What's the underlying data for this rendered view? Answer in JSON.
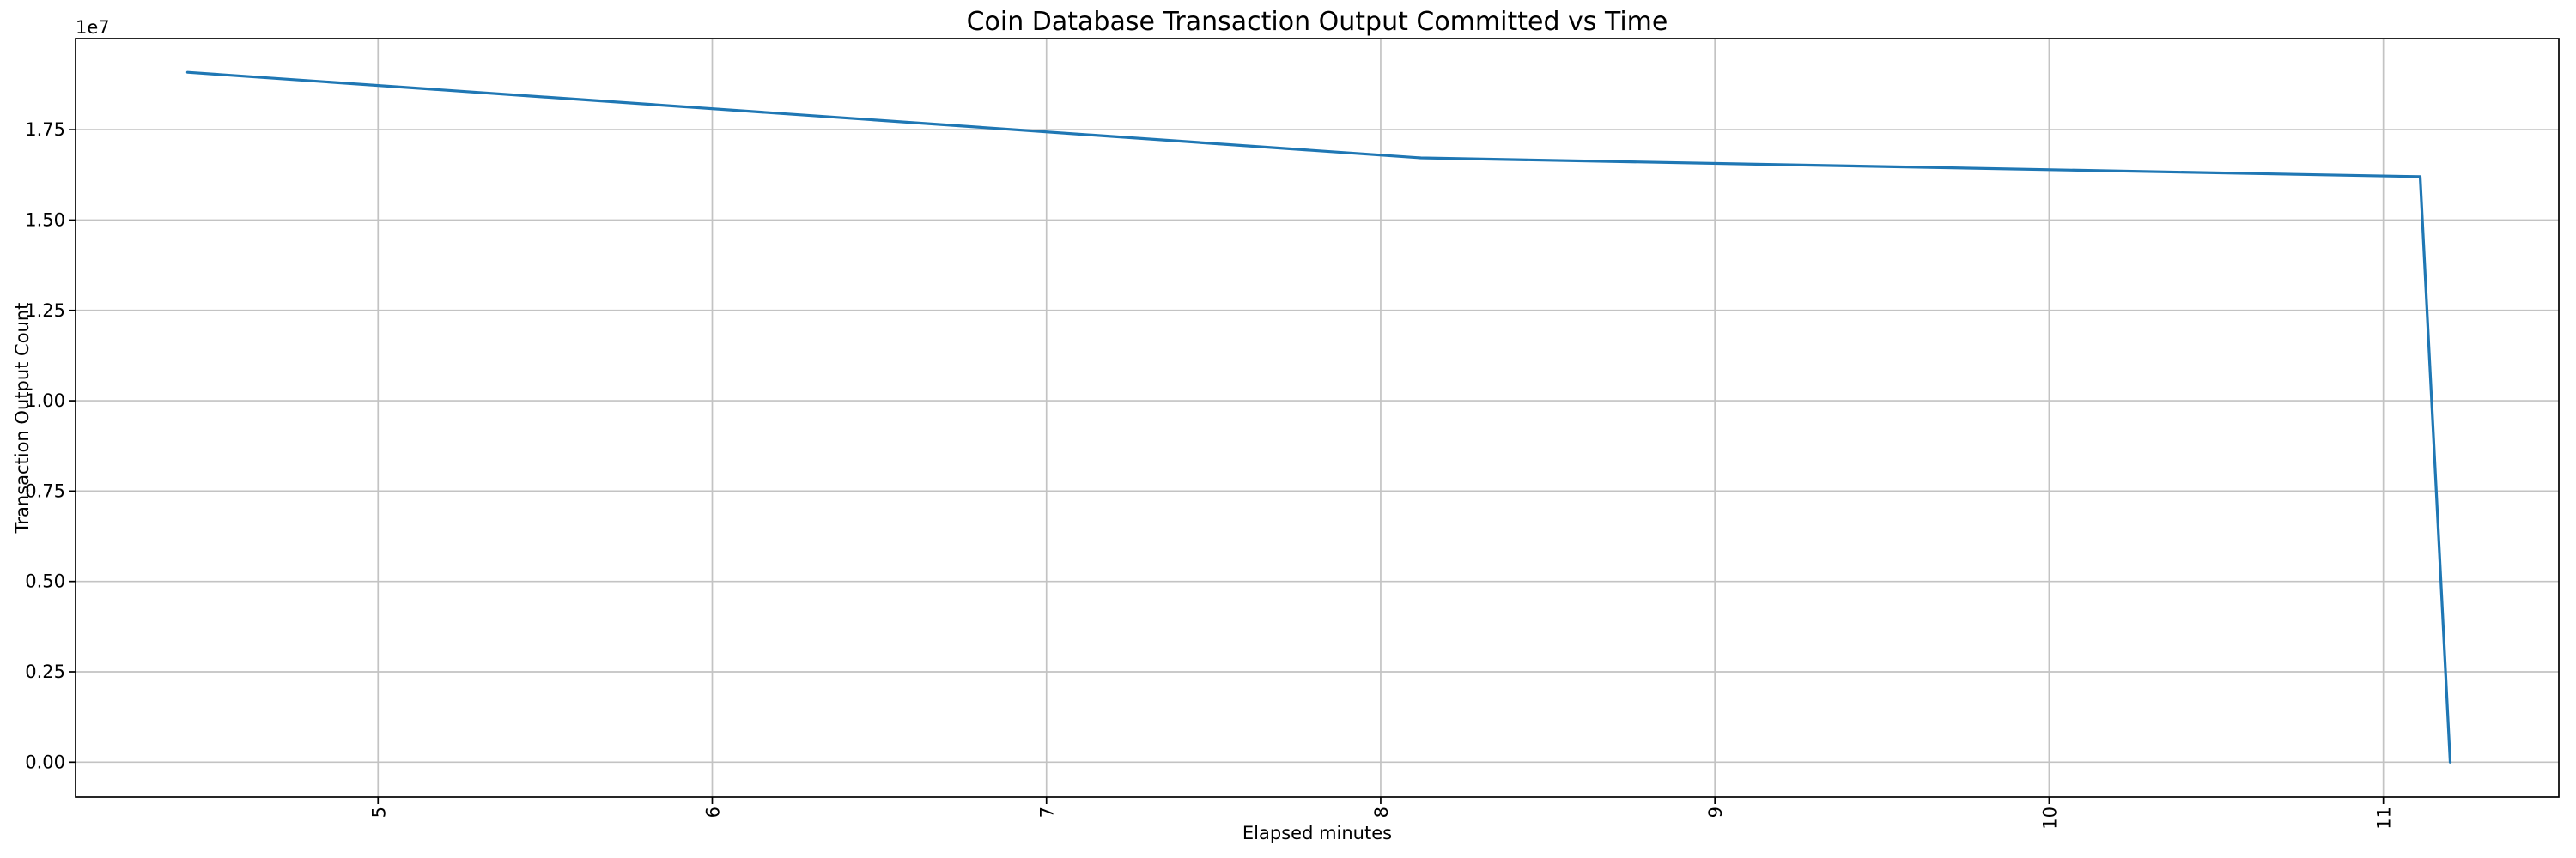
{
  "chart_data": {
    "type": "line",
    "title": "Coin Database Transaction Output Committed vs Time",
    "xlabel": "Elapsed minutes",
    "ylabel": "Transaction Output Count",
    "y_axis_offset_label": "1e7",
    "xlim": [
      4.095,
      11.525
    ],
    "ylim": [
      -966000,
      20020000
    ],
    "x_ticks": [
      5,
      6,
      7,
      8,
      9,
      10,
      11
    ],
    "y_ticks": [
      {
        "value": 0,
        "label": "0.00"
      },
      {
        "value": 2500000,
        "label": "0.25"
      },
      {
        "value": 5000000,
        "label": "0.50"
      },
      {
        "value": 7500000,
        "label": "0.75"
      },
      {
        "value": 10000000,
        "label": "1.00"
      },
      {
        "value": 12500000,
        "label": "1.25"
      },
      {
        "value": 15000000,
        "label": "1.50"
      },
      {
        "value": 17500000,
        "label": "1.75"
      }
    ],
    "grid": true,
    "legend": false,
    "line_color": "#1f77b4",
    "grid_color": "#c3c3c3",
    "spine_color": "#000000",
    "series": [
      {
        "name": "Transaction Output Count",
        "points": [
          [
            4.43,
            19090000
          ],
          [
            8.12,
            16720000
          ],
          [
            11.11,
            16200000
          ],
          [
            11.2,
            0
          ]
        ]
      }
    ]
  }
}
